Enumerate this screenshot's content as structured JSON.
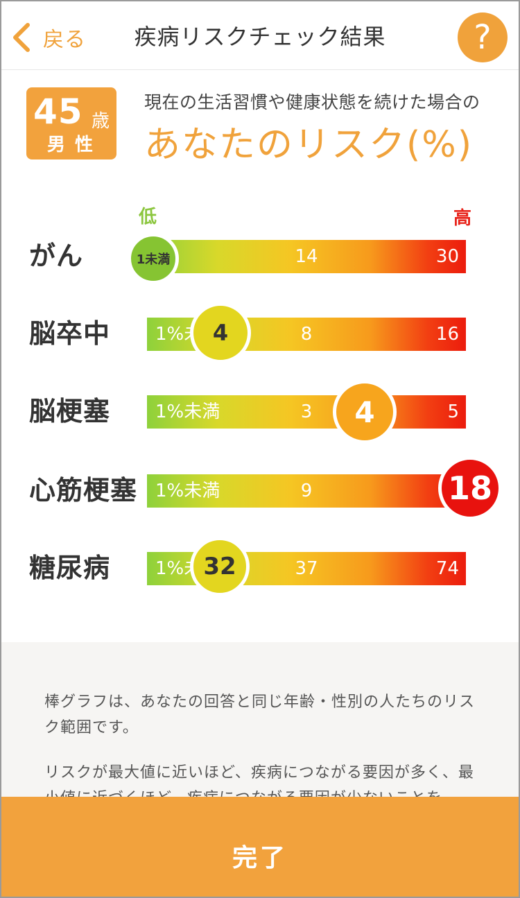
{
  "header": {
    "back_label": "戻る",
    "title": "疾病リスクチェック結果",
    "help_label": "?"
  },
  "profile": {
    "age": "45",
    "age_unit": "歳",
    "gender": "男性",
    "subtitle": "現在の生活習慣や健康状態を続けた場合の",
    "headline": "あなたのリスク(%)"
  },
  "legend": {
    "low": "低",
    "high": "高"
  },
  "chart_data": {
    "type": "bar",
    "title": "あなたのリスク(%)",
    "rows": [
      {
        "name": "がん",
        "min_label": "",
        "mid_label": "14",
        "max_label": "30",
        "value": 0,
        "value_label": "1未満",
        "marker_color": "#86c432"
      },
      {
        "name": "脳卒中",
        "min_label": "1%未満",
        "mid_label": "8",
        "max_label": "16",
        "value": 4,
        "value_label": "4",
        "marker_color": "#e3d61f"
      },
      {
        "name": "脳梗塞",
        "min_label": "1%未満",
        "mid_label": "3",
        "max_label": "5",
        "value": 4,
        "value_label": "4",
        "marker_color": "#f7a51d"
      },
      {
        "name": "心筋梗塞",
        "min_label": "1%未満",
        "mid_label": "9",
        "max_label": "",
        "value": 18,
        "value_label": "18",
        "marker_color": "#e8120e"
      },
      {
        "name": "糖尿病",
        "min_label": "1%未満",
        "mid_label": "37",
        "max_label": "74",
        "value": 32,
        "value_label": "32",
        "marker_color": "#e3d61f"
      }
    ]
  },
  "note": {
    "paragraph_1": "棒グラフは、あなたの回答と同じ年齢・性別の人たちのリスク範囲です。",
    "paragraph_2": "リスクが最大値に近いほど、疾病につながる要因が多く、最小値に近づくほど、疾病につながる要因が少ないことを"
  },
  "footer": {
    "done_label": "完了"
  }
}
